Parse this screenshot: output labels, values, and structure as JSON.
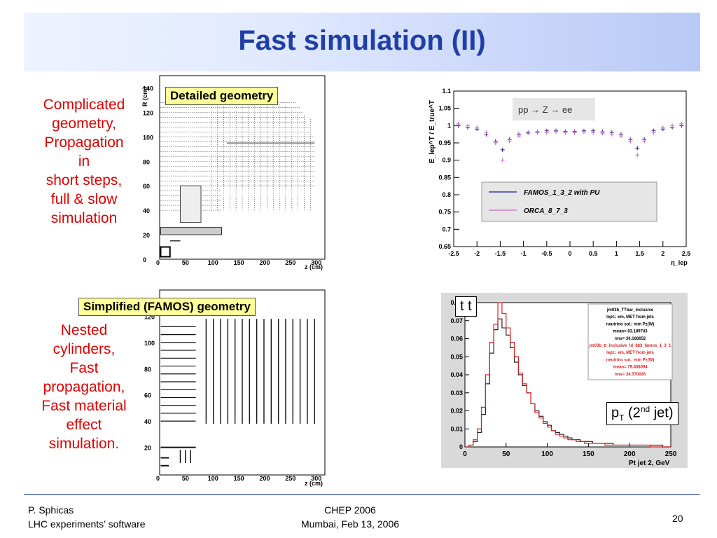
{
  "slide": {
    "title": "Fast simulation (II)",
    "left_text_top": [
      "Complicated",
      "geometry,",
      "Propagation",
      "in",
      "short steps,",
      "full & slow",
      "simulation"
    ],
    "left_text_bottom": [
      "Nested",
      "cylinders,",
      "Fast",
      "propagation,",
      "Fast material",
      "effect",
      "simulation."
    ],
    "label_detailed": "Detailed geometry",
    "label_simplified": "Simplified (FAMOS) geometry",
    "ttbar_label": "t t",
    "pt_label": "p",
    "pt_sub": "T",
    "pt_rest_open": " (2",
    "pt_sup": "nd",
    "pt_rest_close": " jet)"
  },
  "footer": {
    "left_line1": "P. Sphicas",
    "left_line2": "LHC experiments’ software",
    "center_line1": "CHEP 2006",
    "center_line2": "Mumbai, Feb 13, 2006",
    "page_number": "20"
  },
  "geom_top": {
    "ylabel": "R (cm)",
    "xlabel": "z (cm)",
    "yticks": [
      "0",
      "20",
      "40",
      "60",
      "80",
      "100",
      "120",
      "140"
    ],
    "xticks": [
      "0",
      "50",
      "100",
      "150",
      "200",
      "250",
      "300"
    ]
  },
  "geom_bottom": {
    "xlabel": "z (cm)",
    "yticks": [
      "20",
      "40",
      "60",
      "80",
      "100",
      "120"
    ],
    "xticks": [
      "0",
      "50",
      "100",
      "150",
      "200",
      "250",
      "300"
    ]
  },
  "chart_data": [
    {
      "type": "scatter",
      "title": "",
      "annotation": "pp → Z → ee",
      "xlabel": "η_lep",
      "ylabel": "E_lep^T / E_true^T",
      "xlim": [
        -2.5,
        2.5
      ],
      "ylim": [
        0.65,
        1.1
      ],
      "xticks": [
        "-2.5",
        "-2",
        "-1.5",
        "-1",
        "-0.5",
        "0",
        "0.5",
        "1",
        "1.5",
        "2",
        "2.5"
      ],
      "yticks": [
        "0.65",
        "0.7",
        "0.75",
        "0.8",
        "0.85",
        "0.9",
        "0.95",
        "1",
        "1.05",
        "1.1"
      ],
      "legend_position": "bottom-right",
      "series": [
        {
          "name": "FAMOS_1_3_2 with PU",
          "color": "#1a1a8c",
          "x": [
            -2.4,
            -2.2,
            -2.0,
            -1.8,
            -1.6,
            -1.45,
            -1.3,
            -1.1,
            -0.9,
            -0.7,
            -0.5,
            -0.3,
            -0.1,
            0.1,
            0.3,
            0.5,
            0.7,
            0.9,
            1.1,
            1.3,
            1.45,
            1.6,
            1.8,
            2.0,
            2.2,
            2.4
          ],
          "y": [
            1.0,
            0.995,
            0.99,
            0.975,
            0.955,
            0.93,
            0.96,
            0.975,
            0.98,
            0.982,
            0.985,
            0.985,
            0.983,
            0.983,
            0.985,
            0.985,
            0.982,
            0.98,
            0.975,
            0.96,
            0.935,
            0.96,
            0.985,
            0.99,
            0.995,
            1.0
          ]
        },
        {
          "name": "ORCA_8_7_3",
          "color": "#cc66cc",
          "x": [
            -2.4,
            -2.2,
            -2.0,
            -1.8,
            -1.6,
            -1.45,
            -1.3,
            -1.1,
            -0.9,
            -0.7,
            -0.5,
            -0.3,
            -0.1,
            0.1,
            0.3,
            0.5,
            0.7,
            0.9,
            1.1,
            1.3,
            1.45,
            1.6,
            1.8,
            2.0,
            2.2,
            2.4
          ],
          "y": [
            1.005,
            1.0,
            0.995,
            0.98,
            0.95,
            0.9,
            0.955,
            0.97,
            0.978,
            0.98,
            0.98,
            0.982,
            0.98,
            0.98,
            0.982,
            0.98,
            0.978,
            0.975,
            0.97,
            0.955,
            0.915,
            0.955,
            0.98,
            0.995,
            1.0,
            1.005
          ]
        }
      ]
    },
    {
      "type": "line",
      "title": "",
      "xlabel": "Pt jet 2, GeV",
      "ylabel": "",
      "xlim": [
        0,
        250
      ],
      "ylim": [
        0,
        0.08
      ],
      "xticks": [
        "0",
        "50",
        "100",
        "150",
        "200",
        "250"
      ],
      "yticks": [
        "0",
        "0.01",
        "0.02",
        "0.03",
        "0.04",
        "0.05",
        "0.06",
        "0.07",
        "0.08"
      ],
      "legend_position": "top-right",
      "stats": {
        "line1": [
          "jm03b_TTbar_inclusive",
          "lept.: em, MET from jets",
          "neutrino sol.: min Pz(W)",
          "mean= 83.189743",
          "rms= 36.168652"
        ],
        "line2": [
          "jm03b_tt_inclusive_ld_683_famos_1_3_1",
          "lept.: em, MET from jets",
          "neutrino sol.: min Pz(W)",
          "mean= 79.458094",
          "rms= 34.570026"
        ]
      },
      "bin_width": 5,
      "series": [
        {
          "name": "jm03b_TTbar_inclusive",
          "color": "#222222",
          "values": [
            0.0,
            0.001,
            0.003,
            0.008,
            0.018,
            0.035,
            0.052,
            0.065,
            0.071,
            0.066,
            0.062,
            0.055,
            0.047,
            0.04,
            0.034,
            0.03,
            0.024,
            0.02,
            0.017,
            0.014,
            0.012,
            0.009,
            0.008,
            0.007,
            0.006,
            0.005,
            0.004,
            0.004,
            0.003,
            0.003,
            0.003,
            0.002,
            0.002,
            0.002,
            0.002,
            0.002,
            0.001,
            0.001,
            0.001,
            0.001,
            0.001,
            0.001,
            0.001,
            0.001,
            0.001,
            0.001,
            0.001,
            0.001,
            0.0,
            0.0
          ]
        },
        {
          "name": "jm03b_tt_inclusive_ld_683_famos_1_3_1",
          "color": "#e02020",
          "values": [
            0.0,
            0.001,
            0.004,
            0.01,
            0.022,
            0.04,
            0.058,
            0.068,
            0.08,
            0.074,
            0.066,
            0.058,
            0.05,
            0.041,
            0.035,
            0.03,
            0.024,
            0.019,
            0.016,
            0.013,
            0.011,
            0.009,
            0.007,
            0.006,
            0.005,
            0.004,
            0.004,
            0.003,
            0.003,
            0.002,
            0.002,
            0.002,
            0.002,
            0.002,
            0.001,
            0.001,
            0.001,
            0.001,
            0.001,
            0.001,
            0.001,
            0.001,
            0.001,
            0.001,
            0.001,
            0.0,
            0.0,
            0.0,
            0.0,
            0.0
          ]
        }
      ]
    }
  ]
}
